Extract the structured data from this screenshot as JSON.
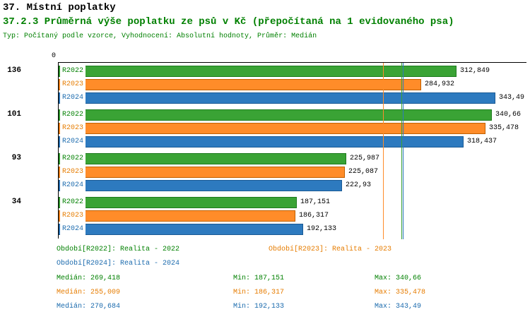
{
  "header": {
    "title": "37. Místní poplatky",
    "subtitle": "37.2.3 Průměrná výše poplatku ze psů v Kč (přepočítaná na 1 evidovaného psa)",
    "meta": "Typ: Počítaný podle vzorce, Vyhodnocení: Absolutní hodnoty, Průměr: Medián",
    "title_color": "#000000",
    "subtitle_color": "#008000"
  },
  "chart_data": {
    "type": "bar",
    "orientation": "horizontal",
    "title": "37.2.3 Průměrná výše poplatku ze psů v Kč (přepočítaná na 1 evidovaného psa)",
    "unit": "Kč",
    "origin_label": "0",
    "xlim": [
      0,
      368
    ],
    "grid": false,
    "series": [
      "R2022",
      "R2023",
      "R2024"
    ],
    "series_colors": {
      "R2022": {
        "fill": "#3aa335",
        "border": "#1d7a1d",
        "text": "#008000"
      },
      "R2023": {
        "fill": "#ff8c29",
        "border": "#c06000",
        "text": "#e67c00"
      },
      "R2024": {
        "fill": "#2d7abf",
        "border": "#1a5a95",
        "text": "#1a6aad"
      }
    },
    "groups": [
      {
        "label": "136",
        "bars": [
          {
            "series": "R2022",
            "value": 312.849,
            "value_label": "312,849"
          },
          {
            "series": "R2023",
            "value": 284.932,
            "value_label": "284,932"
          },
          {
            "series": "R2024",
            "value": 343.49,
            "value_label": "343,49"
          }
        ]
      },
      {
        "label": "101",
        "bars": [
          {
            "series": "R2022",
            "value": 340.66,
            "value_label": "340,66"
          },
          {
            "series": "R2023",
            "value": 335.478,
            "value_label": "335,478"
          },
          {
            "series": "R2024",
            "value": 318.437,
            "value_label": "318,437"
          }
        ]
      },
      {
        "label": "93",
        "bars": [
          {
            "series": "R2022",
            "value": 225.987,
            "value_label": "225,987"
          },
          {
            "series": "R2023",
            "value": 225.087,
            "value_label": "225,087"
          },
          {
            "series": "R2024",
            "value": 222.93,
            "value_label": "222,93"
          }
        ]
      },
      {
        "label": "34",
        "bars": [
          {
            "series": "R2022",
            "value": 187.151,
            "value_label": "187,151"
          },
          {
            "series": "R2023",
            "value": 186.317,
            "value_label": "186,317"
          },
          {
            "series": "R2024",
            "value": 192.133,
            "value_label": "192,133"
          }
        ]
      }
    ],
    "median_lines": [
      {
        "series": "R2022",
        "value": 269.418
      },
      {
        "series": "R2023",
        "value": 255.009
      },
      {
        "series": "R2024",
        "value": 270.684
      }
    ]
  },
  "legend": {
    "items": [
      {
        "series": "R2022",
        "label": "Období[R2022]: Realita - 2022"
      },
      {
        "series": "R2023",
        "label": "Období[R2023]: Realita - 2023"
      },
      {
        "series": "R2024",
        "label": "Období[R2024]: Realita - 2024"
      }
    ],
    "stats": [
      {
        "series": "R2022",
        "median": "Medián: 269,418",
        "min": "Min: 187,151",
        "max": "Max: 340,66"
      },
      {
        "series": "R2023",
        "median": "Medián: 255,009",
        "min": "Min: 186,317",
        "max": "Max: 335,478"
      },
      {
        "series": "R2024",
        "median": "Medián: 270,684",
        "min": "Min: 192,133",
        "max": "Max: 343,49"
      }
    ]
  }
}
